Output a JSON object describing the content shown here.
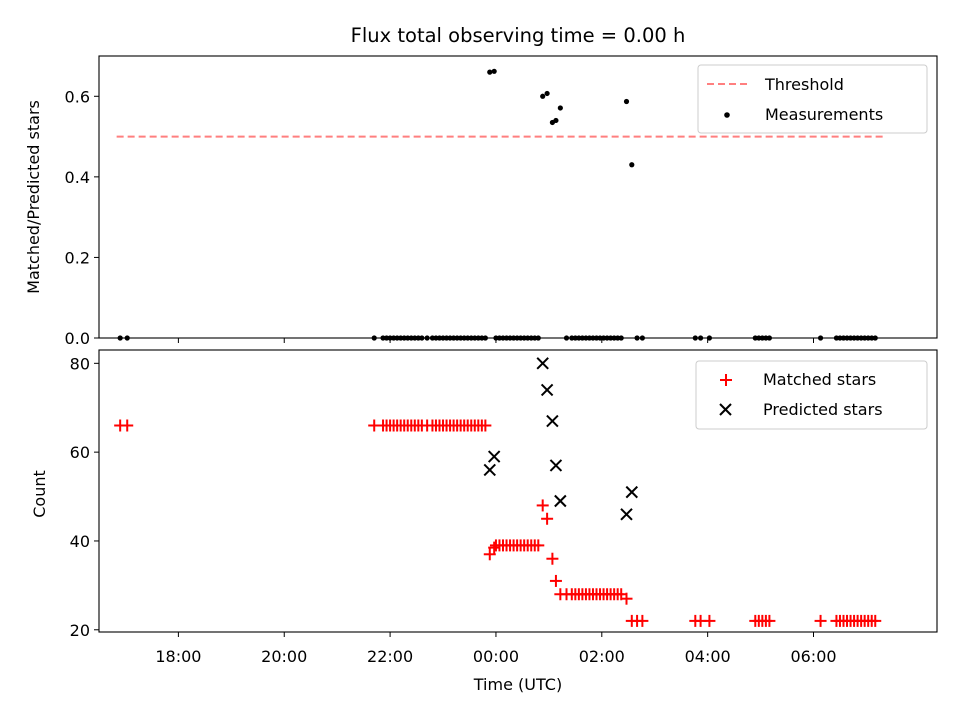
{
  "chart_data": [
    {
      "type": "scatter",
      "title": "Flux total observing time = 0.00 h",
      "xlabel": "",
      "ylabel": "Matched/Predicted stars",
      "ylim": [
        0,
        0.7
      ],
      "yticks": [
        0.0,
        0.2,
        0.4,
        0.6
      ],
      "ytick_labels": [
        "0.0",
        "0.2",
        "0.4",
        "0.6"
      ],
      "grid": false,
      "legend_position": "top-right",
      "colors": {
        "threshold": "#ff7f7f",
        "measurements": "#000000"
      },
      "threshold": {
        "name": "Threshold",
        "value": 0.5,
        "x_range": [
          "16:50",
          "07:20"
        ],
        "style": "dashed"
      },
      "series": [
        {
          "name": "Measurements",
          "x": [
            "16:54",
            "17:02",
            "21:42",
            "21:52",
            "21:56",
            "22:00",
            "22:04",
            "22:08",
            "22:12",
            "22:16",
            "22:20",
            "22:24",
            "22:28",
            "22:32",
            "22:36",
            "22:42",
            "22:48",
            "22:52",
            "22:56",
            "23:00",
            "23:04",
            "23:08",
            "23:12",
            "23:16",
            "23:20",
            "23:24",
            "23:28",
            "23:32",
            "23:36",
            "23:40",
            "23:44",
            "23:48",
            "23:53",
            "23:58",
            "00:00",
            "00:04",
            "00:08",
            "00:12",
            "00:16",
            "00:20",
            "00:24",
            "00:28",
            "00:32",
            "00:36",
            "00:40",
            "00:44",
            "00:48",
            "00:53",
            "00:58",
            "01:04",
            "01:08",
            "01:13",
            "01:20",
            "01:26",
            "01:30",
            "01:34",
            "01:38",
            "01:42",
            "01:46",
            "01:50",
            "01:54",
            "01:58",
            "02:02",
            "02:06",
            "02:10",
            "02:14",
            "02:18",
            "02:22",
            "02:28",
            "02:34",
            "02:40",
            "02:46",
            "03:46",
            "03:52",
            "04:02",
            "04:54",
            "04:58",
            "05:02",
            "05:06",
            "05:10",
            "06:08",
            "06:26",
            "06:30",
            "06:34",
            "06:38",
            "06:42",
            "06:46",
            "06:50",
            "06:54",
            "06:58",
            "07:02",
            "07:06",
            "07:10"
          ],
          "y": [
            0,
            0,
            0,
            0,
            0,
            0,
            0,
            0,
            0,
            0,
            0,
            0,
            0,
            0,
            0,
            0,
            0,
            0,
            0,
            0,
            0,
            0,
            0,
            0,
            0,
            0,
            0,
            0,
            0,
            0,
            0,
            0,
            0.66,
            0.662,
            0,
            0,
            0,
            0,
            0,
            0,
            0,
            0,
            0,
            0,
            0,
            0,
            0,
            0.6,
            0.607,
            0.535,
            0.54,
            0.571,
            0,
            0,
            0,
            0,
            0,
            0,
            0,
            0,
            0,
            0,
            0,
            0,
            0,
            0,
            0,
            0,
            0.587,
            0.43,
            0,
            0,
            0,
            0,
            0,
            0,
            0,
            0,
            0,
            0,
            0,
            0,
            0,
            0,
            0,
            0,
            0,
            0,
            0,
            0,
            0,
            0,
            0
          ],
          "marker": "dot"
        }
      ]
    },
    {
      "type": "scatter",
      "title": "",
      "xlabel": "Time (UTC)",
      "ylabel": "Count",
      "ylim": [
        19.5,
        83
      ],
      "yticks": [
        20,
        40,
        60,
        80
      ],
      "ytick_labels": [
        "20",
        "40",
        "60",
        "80"
      ],
      "xlim": [
        "16:30",
        "08:20"
      ],
      "xticks": [
        "18:00",
        "20:00",
        "22:00",
        "00:00",
        "02:00",
        "04:00",
        "06:00"
      ],
      "grid": false,
      "legend_position": "top-right",
      "colors": {
        "matched": "#ff0000",
        "predicted": "#000000"
      },
      "series": [
        {
          "name": "Matched stars",
          "marker": "plus",
          "x": [
            "16:54",
            "17:02",
            "21:42",
            "21:52",
            "21:56",
            "22:00",
            "22:04",
            "22:08",
            "22:12",
            "22:16",
            "22:20",
            "22:24",
            "22:28",
            "22:32",
            "22:36",
            "22:42",
            "22:48",
            "22:52",
            "22:56",
            "23:00",
            "23:04",
            "23:08",
            "23:12",
            "23:16",
            "23:20",
            "23:24",
            "23:28",
            "23:32",
            "23:36",
            "23:40",
            "23:44",
            "23:48",
            "23:53",
            "23:58",
            "00:00",
            "00:04",
            "00:08",
            "00:12",
            "00:16",
            "00:20",
            "00:24",
            "00:28",
            "00:32",
            "00:36",
            "00:40",
            "00:44",
            "00:48",
            "00:53",
            "00:58",
            "01:04",
            "01:08",
            "01:13",
            "01:20",
            "01:26",
            "01:30",
            "01:34",
            "01:38",
            "01:42",
            "01:46",
            "01:50",
            "01:54",
            "01:58",
            "02:02",
            "02:06",
            "02:10",
            "02:14",
            "02:18",
            "02:22",
            "02:28",
            "02:34",
            "02:40",
            "02:46",
            "03:46",
            "03:52",
            "04:02",
            "04:54",
            "04:58",
            "05:02",
            "05:06",
            "05:10",
            "06:08",
            "06:26",
            "06:30",
            "06:34",
            "06:38",
            "06:42",
            "06:46",
            "06:50",
            "06:54",
            "06:58",
            "07:02",
            "07:06",
            "07:10"
          ],
          "y": [
            66,
            66,
            66,
            66,
            66,
            66,
            66,
            66,
            66,
            66,
            66,
            66,
            66,
            66,
            66,
            66,
            66,
            66,
            66,
            66,
            66,
            66,
            66,
            66,
            66,
            66,
            66,
            66,
            66,
            66,
            66,
            66,
            37,
            38.5,
            39,
            39,
            39,
            39,
            39,
            39,
            39,
            39,
            39,
            39,
            39,
            39,
            39,
            48,
            45,
            36,
            31,
            28,
            28,
            28,
            28,
            28,
            28,
            28,
            28,
            28,
            28,
            28,
            28,
            28,
            28,
            28,
            28,
            28,
            27,
            22,
            22,
            22,
            22,
            22,
            22,
            22,
            22,
            22,
            22,
            22,
            22,
            22,
            22,
            22,
            22,
            22,
            22,
            22,
            22,
            22,
            22,
            22,
            22
          ]
        },
        {
          "name": "Predicted stars",
          "marker": "x",
          "x": [
            "23:53",
            "23:58",
            "00:53",
            "00:58",
            "01:04",
            "01:08",
            "01:13",
            "02:28",
            "02:34"
          ],
          "y": [
            56,
            59,
            80,
            74,
            67,
            57,
            49,
            46,
            51
          ]
        }
      ]
    }
  ]
}
